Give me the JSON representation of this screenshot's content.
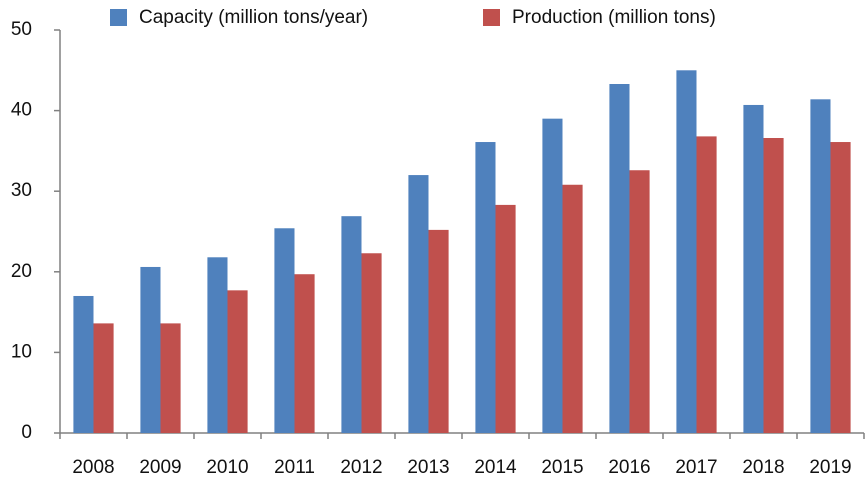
{
  "chart_data": {
    "type": "bar",
    "categories": [
      "2008",
      "2009",
      "2010",
      "2011",
      "2012",
      "2013",
      "2014",
      "2015",
      "2016",
      "2017",
      "2018",
      "2019"
    ],
    "series": [
      {
        "name": "Capacity (million tons/year)",
        "color": "#4f81bd",
        "values": [
          17.0,
          20.6,
          21.8,
          25.4,
          26.9,
          32.0,
          36.1,
          39.0,
          43.3,
          45.0,
          40.7,
          41.4
        ]
      },
      {
        "name": "Production (million tons)",
        "color": "#c0504d",
        "values": [
          13.6,
          13.6,
          17.7,
          19.7,
          22.3,
          25.2,
          28.3,
          30.8,
          32.6,
          36.8,
          36.6,
          36.1
        ]
      }
    ],
    "ylim": [
      0,
      50
    ],
    "yticks": [
      0,
      10,
      20,
      30,
      40,
      50
    ],
    "grid": false,
    "legend": "top"
  }
}
